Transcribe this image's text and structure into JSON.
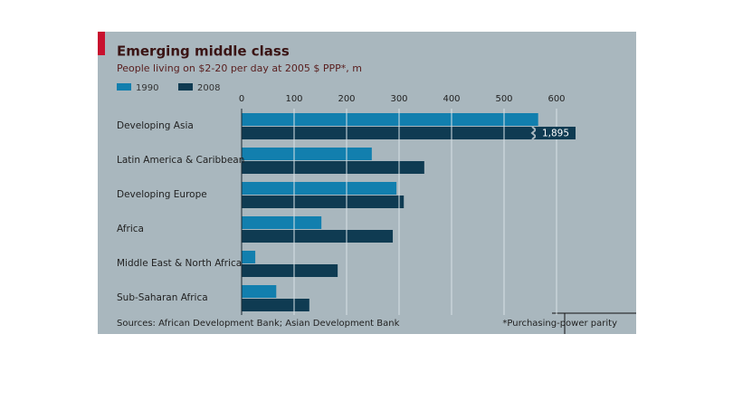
{
  "chart_data": {
    "type": "hbar",
    "title": "Emerging middle class",
    "subtitle": "People living on $2-20 per day at 2005 $ PPP*, m",
    "categories": [
      "Developing Asia",
      "Latin America & Caribbean",
      "Developing Europe",
      "Africa",
      "Middle East & North Africa",
      "Sub-Saharan Africa"
    ],
    "series": [
      {
        "name": "1990",
        "color": "#127fae",
        "values": [
          565,
          248,
          295,
          152,
          26,
          66
        ]
      },
      {
        "name": "2008",
        "color": "#0f3b52",
        "values": [
          1895,
          348,
          309,
          288,
          183,
          129
        ],
        "value_labels": [
          "1,895",
          null,
          null,
          null,
          null,
          null
        ]
      }
    ],
    "xlim": [
      0,
      700
    ],
    "xticks": [
      0,
      100,
      200,
      300,
      400,
      500,
      600
    ],
    "grid": true,
    "legend": "top-left",
    "source": "Sources: African Development Bank; Asian Development Bank",
    "footnote": "*Purchasing-power parity"
  }
}
